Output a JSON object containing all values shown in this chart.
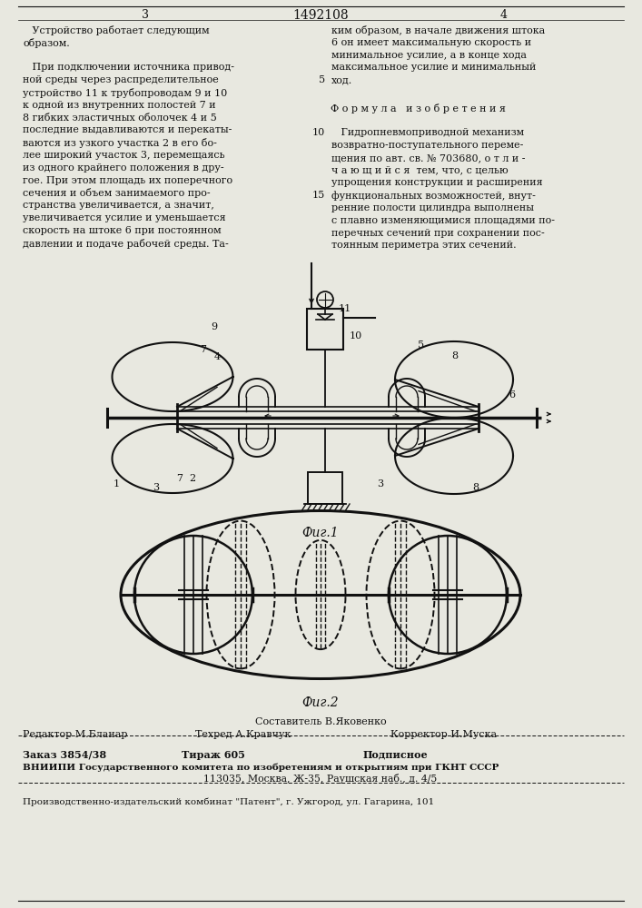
{
  "page_width": 7.07,
  "page_height": 10.0,
  "bg_color": "#e8e8e0",
  "line_color": "#111111",
  "text_color": "#111111",
  "header_number_left": "3",
  "header_title": "1492108",
  "header_number_right": "4",
  "fig1_label": "Фиг.1",
  "fig2_label": "Фиг.2",
  "footer_composer": "Составитель В.Яковенко",
  "footer_editor": "Редактор М.Бланар",
  "footer_techred": "Техред А.Кравчук",
  "footer_corrector": "Корректор И.Муска",
  "footer_order": "Заказ 3854/38",
  "footer_tirazh": "Тираж 605",
  "footer_podpisnoe": "Подписное",
  "footer_vniipи": "ВНИИПИ Государственного комитета по изобретениям и открытиям при ГКНТ СССР",
  "footer_address": "113035, Москва, Ж-35, Раушская наб., д. 4/5",
  "footer_factory": "Производственно-издательский комбинат \"Патент\", г. Ужгород, ул. Гагарина, 101"
}
